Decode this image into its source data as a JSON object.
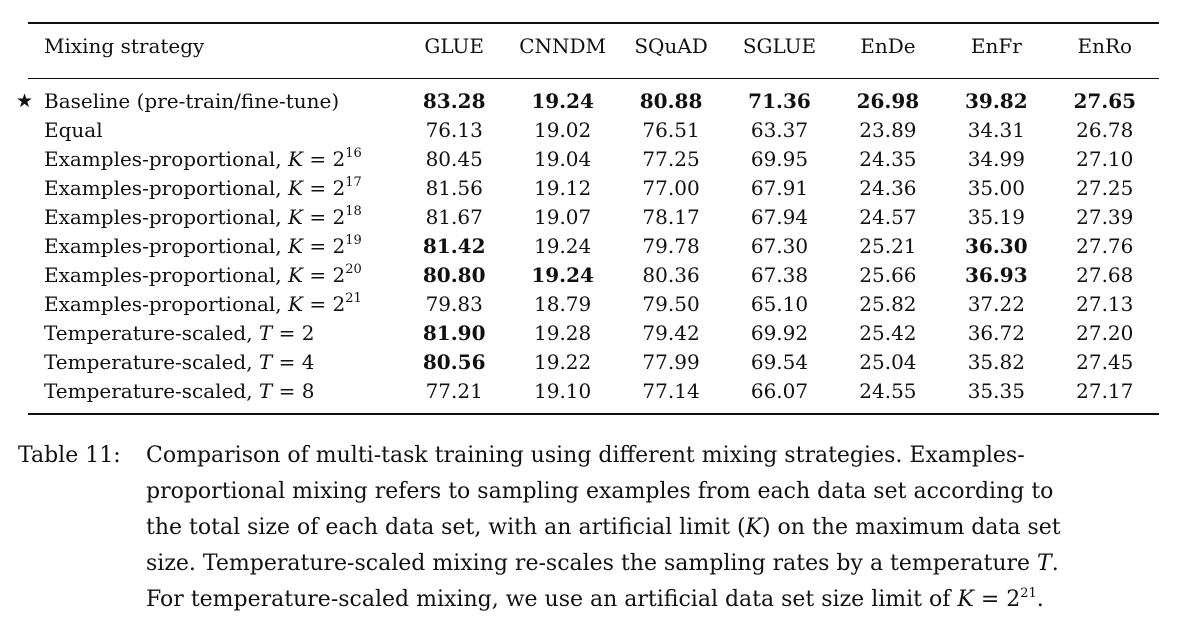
{
  "table": {
    "headers": [
      "Mixing strategy",
      "GLUE",
      "CNNDM",
      "SQuAD",
      "SGLUE",
      "EnDe",
      "EnFr",
      "EnRo"
    ],
    "baseline": {
      "star": "★",
      "label": "Baseline (pre-train/fine-tune)",
      "values": [
        "83.28",
        "19.24",
        "80.88",
        "71.36",
        "26.98",
        "39.82",
        "27.65"
      ]
    },
    "rows": [
      {
        "label": "Equal",
        "values": [
          "76.13",
          "19.02",
          "76.51",
          "63.37",
          "23.89",
          "34.31",
          "26.78"
        ]
      },
      {
        "label": "Examples-proportional, ",
        "var": "K",
        "eq": " = 2",
        "exp": "16",
        "values": [
          "80.45",
          "19.04",
          "77.25",
          "69.95",
          "24.35",
          "34.99",
          "27.10"
        ]
      },
      {
        "label": "Examples-proportional, ",
        "var": "K",
        "eq": " = 2",
        "exp": "17",
        "values": [
          "81.56",
          "19.12",
          "77.00",
          "67.91",
          "24.36",
          "35.00",
          "27.25"
        ]
      },
      {
        "label": "Examples-proportional, ",
        "var": "K",
        "eq": " = 2",
        "exp": "18",
        "values": [
          "81.67",
          "19.07",
          "78.17",
          "67.94",
          "24.57",
          "35.19",
          "27.39"
        ]
      },
      {
        "label": "Examples-proportional, ",
        "var": "K",
        "eq": " = 2",
        "exp": "19",
        "values": [
          "81.42",
          "19.24",
          "79.78",
          "67.30",
          "25.21",
          "36.30",
          "27.76"
        ]
      },
      {
        "label": "Examples-proportional, ",
        "var": "K",
        "eq": " = 2",
        "exp": "20",
        "values": [
          "80.80",
          "19.24",
          "80.36",
          "67.38",
          "25.66",
          "36.93",
          "27.68"
        ]
      },
      {
        "label": "Examples-proportional, ",
        "var": "K",
        "eq": " = 2",
        "exp": "21",
        "values": [
          "79.83",
          "18.79",
          "79.50",
          "65.10",
          "25.82",
          "37.22",
          "27.13"
        ]
      },
      {
        "label": "Temperature-scaled, ",
        "var": "T",
        "eq": " = 2",
        "exp": "",
        "values": [
          "81.90",
          "19.28",
          "79.42",
          "69.92",
          "25.42",
          "36.72",
          "27.20"
        ]
      },
      {
        "label": "Temperature-scaled, ",
        "var": "T",
        "eq": " = 4",
        "exp": "",
        "values": [
          "80.56",
          "19.22",
          "77.99",
          "69.54",
          "25.04",
          "35.82",
          "27.45"
        ]
      },
      {
        "label": "Temperature-scaled, ",
        "var": "T",
        "eq": " = 8",
        "exp": "",
        "values": [
          "77.21",
          "19.10",
          "77.14",
          "66.07",
          "24.55",
          "35.35",
          "27.17"
        ]
      }
    ],
    "bold_cells": [
      [
        5,
        1
      ],
      [
        5,
        6
      ],
      [
        6,
        1
      ],
      [
        6,
        2
      ],
      [
        6,
        6
      ],
      [
        8,
        1
      ],
      [
        9,
        1
      ]
    ]
  },
  "caption": {
    "label": "Table 11:",
    "line1": "Comparison of multi-task training using different mixing strategies. Examples-",
    "line2": "proportional mixing refers to sampling examples from each data set according to",
    "line3_a": "the total size of each data set, with an artificial limit (",
    "line3_var": "K",
    "line3_b": ") on the maximum data set",
    "line4_a": "size. Temperature-scaled mixing re-scales the sampling rates by a temperature ",
    "line4_var": "T",
    "line4_b": ".",
    "line5_a": "For temperature-scaled mixing, we use an artificial data set size limit of ",
    "line5_var": "K",
    "line5_eq": " = 2",
    "line5_exp": "21",
    "line5_b": "."
  }
}
